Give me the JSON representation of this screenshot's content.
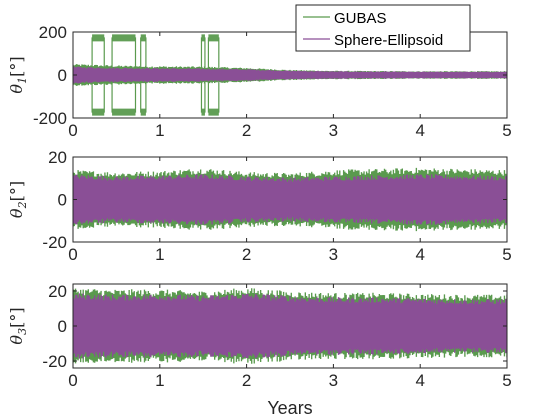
{
  "chart_data": [
    {
      "type": "line",
      "ylabel": "θ1 [°]",
      "ylabel_symbol": "θ",
      "ylabel_sub": "1",
      "ylabel_unit": "[°]",
      "xlim": [
        0,
        5
      ],
      "ylim": [
        -200,
        200
      ],
      "xticks": [
        0,
        1,
        2,
        3,
        4,
        5
      ],
      "yticks": [
        -200,
        0,
        200
      ],
      "xtick_labels": [
        "0",
        "1",
        "2",
        "3",
        "4",
        "5"
      ],
      "ytick_labels": [
        "-200",
        "0",
        "200"
      ],
      "series": [
        {
          "name": "GUBAS",
          "color": "#5a9a4e",
          "envelope": [
            [
              0,
              52
            ],
            [
              0.5,
              45
            ],
            [
              1.0,
              42
            ],
            [
              1.5,
              40
            ],
            [
              2.0,
              34
            ],
            [
              2.5,
              24
            ],
            [
              3.0,
              20
            ],
            [
              3.5,
              19
            ],
            [
              4.0,
              18
            ],
            [
              4.5,
              18
            ],
            [
              5.0,
              18
            ]
          ],
          "wraps": [
            [
              0.22,
              0.36
            ],
            [
              0.45,
              0.72
            ],
            [
              0.78,
              0.84
            ],
            [
              1.48,
              1.52
            ],
            [
              1.56,
              1.68
            ]
          ],
          "wrap_level": 175
        },
        {
          "name": "Sphere-Ellipsoid",
          "color": "#8a4f96",
          "envelope": [
            [
              0,
              40
            ],
            [
              0.5,
              35
            ],
            [
              1.0,
              33
            ],
            [
              1.5,
              31
            ],
            [
              2.0,
              28
            ],
            [
              2.5,
              21
            ],
            [
              3.0,
              18
            ],
            [
              3.5,
              17
            ],
            [
              4.0,
              16
            ],
            [
              4.5,
              16
            ],
            [
              5.0,
              16
            ]
          ]
        }
      ],
      "legend": [
        "GUBAS",
        "Sphere-Ellipsoid"
      ],
      "legend_position": "top-right"
    },
    {
      "type": "line",
      "ylabel": "θ2 [°]",
      "ylabel_symbol": "θ",
      "ylabel_sub": "2",
      "ylabel_unit": "[°]",
      "xlim": [
        0,
        5
      ],
      "ylim": [
        -20,
        20
      ],
      "xticks": [
        0,
        1,
        2,
        3,
        4,
        5
      ],
      "yticks": [
        -20,
        0,
        20
      ],
      "xtick_labels": [
        "0",
        "1",
        "2",
        "3",
        "4",
        "5"
      ],
      "ytick_labels": [
        "-20",
        "0",
        "20"
      ],
      "series": [
        {
          "name": "GUBAS",
          "color": "#5a9a4e",
          "envelope": [
            [
              0,
              14
            ],
            [
              0.5,
              13
            ],
            [
              1.0,
              13.5
            ],
            [
              1.5,
              15
            ],
            [
              2.0,
              13
            ],
            [
              2.5,
              12.5
            ],
            [
              3.0,
              14
            ],
            [
              3.5,
              14.5
            ],
            [
              4.0,
              15
            ],
            [
              4.5,
              14.5
            ],
            [
              5.0,
              14
            ]
          ]
        },
        {
          "name": "Sphere-Ellipsoid",
          "color": "#8a4f96",
          "envelope": [
            [
              0,
              12
            ],
            [
              0.5,
              11
            ],
            [
              1.0,
              11.5
            ],
            [
              1.5,
              12
            ],
            [
              2.0,
              11
            ],
            [
              2.5,
              10.5
            ],
            [
              3.0,
              11
            ],
            [
              3.5,
              11.5
            ],
            [
              4.0,
              12
            ],
            [
              4.5,
              11.5
            ],
            [
              5.0,
              11
            ]
          ]
        }
      ]
    },
    {
      "type": "line",
      "ylabel": "θ3 [°]",
      "ylabel_symbol": "θ",
      "ylabel_sub": "3",
      "ylabel_unit": "[°]",
      "xlim": [
        0,
        5
      ],
      "ylim": [
        -24,
        24
      ],
      "xticks": [
        0,
        1,
        2,
        3,
        4,
        5
      ],
      "yticks": [
        -20,
        0,
        20
      ],
      "xtick_labels": [
        "0",
        "1",
        "2",
        "3",
        "4",
        "5"
      ],
      "ytick_labels": [
        "-20",
        "0",
        "20"
      ],
      "xlabel": "Years",
      "series": [
        {
          "name": "GUBAS",
          "color": "#5a9a4e",
          "envelope": [
            [
              0,
              22
            ],
            [
              0.5,
              21
            ],
            [
              1.0,
              21
            ],
            [
              1.5,
              20
            ],
            [
              2.0,
              22
            ],
            [
              2.5,
              20
            ],
            [
              3.0,
              19
            ],
            [
              3.5,
              19
            ],
            [
              4.0,
              18.5
            ],
            [
              4.5,
              18
            ],
            [
              5.0,
              18
            ]
          ]
        },
        {
          "name": "Sphere-Ellipsoid",
          "color": "#8a4f96",
          "envelope": [
            [
              0,
              19
            ],
            [
              0.5,
              18
            ],
            [
              1.0,
              18.5
            ],
            [
              1.5,
              17.5
            ],
            [
              2.0,
              19
            ],
            [
              2.5,
              17.5
            ],
            [
              3.0,
              16.5
            ],
            [
              3.5,
              16.5
            ],
            [
              4.0,
              16
            ],
            [
              4.5,
              15.5
            ],
            [
              5.0,
              15.5
            ]
          ]
        }
      ]
    }
  ]
}
